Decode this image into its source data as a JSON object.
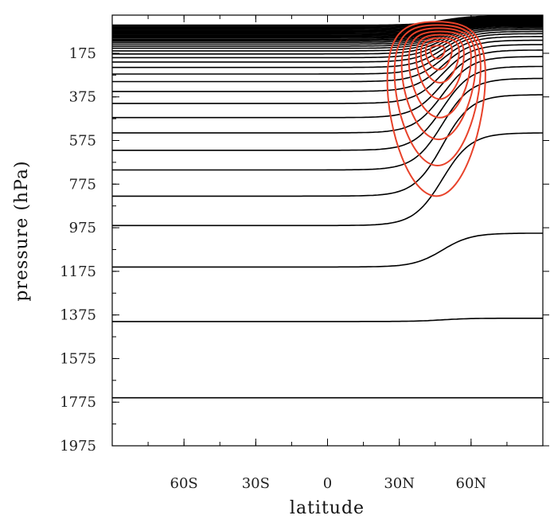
{
  "chart_data": {
    "type": "contour",
    "xlabel": "latitude",
    "ylabel": "pressure (hPa)",
    "xlim": [
      -90,
      90
    ],
    "ylim": [
      1975,
      0
    ],
    "x_ticks": [
      {
        "value": -60,
        "label": "60S"
      },
      {
        "value": -30,
        "label": "30S"
      },
      {
        "value": 0,
        "label": "0"
      },
      {
        "value": 30,
        "label": "30N"
      },
      {
        "value": 60,
        "label": "60N"
      }
    ],
    "y_ticks": [
      {
        "value": 175,
        "label": "175"
      },
      {
        "value": 375,
        "label": "375"
      },
      {
        "value": 575,
        "label": "575"
      },
      {
        "value": 775,
        "label": "775"
      },
      {
        "value": 975,
        "label": "975"
      },
      {
        "value": 1175,
        "label": "1175"
      },
      {
        "value": 1375,
        "label": "1375"
      },
      {
        "value": 1575,
        "label": "1575"
      },
      {
        "value": 1775,
        "label": "1775"
      },
      {
        "value": 1975,
        "label": "1975"
      }
    ],
    "series": [
      {
        "color": "#000000",
        "style": "isentropes",
        "contours": [
          {
            "south": 1755,
            "north": 1755
          },
          {
            "south": 1405,
            "north": 1390
          },
          {
            "south": 1155,
            "north": 1000
          },
          {
            "south": 965,
            "north": 540
          },
          {
            "south": 830,
            "north": 365
          },
          {
            "south": 710,
            "north": 290
          },
          {
            "south": 620,
            "north": 235
          },
          {
            "south": 540,
            "north": 190
          },
          {
            "south": 470,
            "north": 160
          },
          {
            "south": 405,
            "north": 135
          },
          {
            "south": 350,
            "north": 115
          },
          {
            "south": 305,
            "north": 98
          },
          {
            "south": 270,
            "north": 85
          },
          {
            "south": 240,
            "north": 75
          },
          {
            "south": 215,
            "north": 66
          },
          {
            "south": 195,
            "north": 59
          },
          {
            "south": 178,
            "north": 53
          },
          {
            "south": 164,
            "north": 48
          },
          {
            "south": 152,
            "north": 44
          },
          {
            "south": 142,
            "north": 40
          },
          {
            "south": 133,
            "north": 37
          },
          {
            "south": 125,
            "north": 34
          },
          {
            "south": 118,
            "north": 31
          },
          {
            "south": 112,
            "north": 29
          },
          {
            "south": 106,
            "north": 27
          },
          {
            "south": 101,
            "north": 25
          },
          {
            "south": 96,
            "north": 23
          },
          {
            "south": 91,
            "north": 21
          },
          {
            "south": 86,
            "north": 19
          },
          {
            "south": 81,
            "north": 17
          },
          {
            "south": 76,
            "north": 15
          },
          {
            "south": 71,
            "north": 13
          },
          {
            "south": 66,
            "north": 11
          },
          {
            "south": 61,
            "north": 9
          },
          {
            "south": 56,
            "north": 7
          },
          {
            "south": 51,
            "north": 5
          },
          {
            "south": 46,
            "north": 3
          }
        ]
      },
      {
        "color": "#e8422a",
        "style": "jet",
        "center": {
          "lat": 45,
          "p": 170
        },
        "contours": [
          {
            "lat_min": 25,
            "lat_max": 66,
            "p_top": 30,
            "p_bottom": 830
          },
          {
            "lat_min": 28,
            "lat_max": 64,
            "p_top": 45,
            "p_bottom": 690
          },
          {
            "lat_min": 31,
            "lat_max": 62,
            "p_top": 60,
            "p_bottom": 570
          },
          {
            "lat_min": 34,
            "lat_max": 60,
            "p_top": 75,
            "p_bottom": 470
          },
          {
            "lat_min": 37,
            "lat_max": 57,
            "p_top": 90,
            "p_bottom": 385
          },
          {
            "lat_min": 39,
            "lat_max": 55,
            "p_top": 105,
            "p_bottom": 310
          },
          {
            "lat_min": 41,
            "lat_max": 52,
            "p_top": 120,
            "p_bottom": 250
          },
          {
            "lat_min": 43,
            "lat_max": 49,
            "p_top": 140,
            "p_bottom": 200
          }
        ]
      }
    ]
  }
}
